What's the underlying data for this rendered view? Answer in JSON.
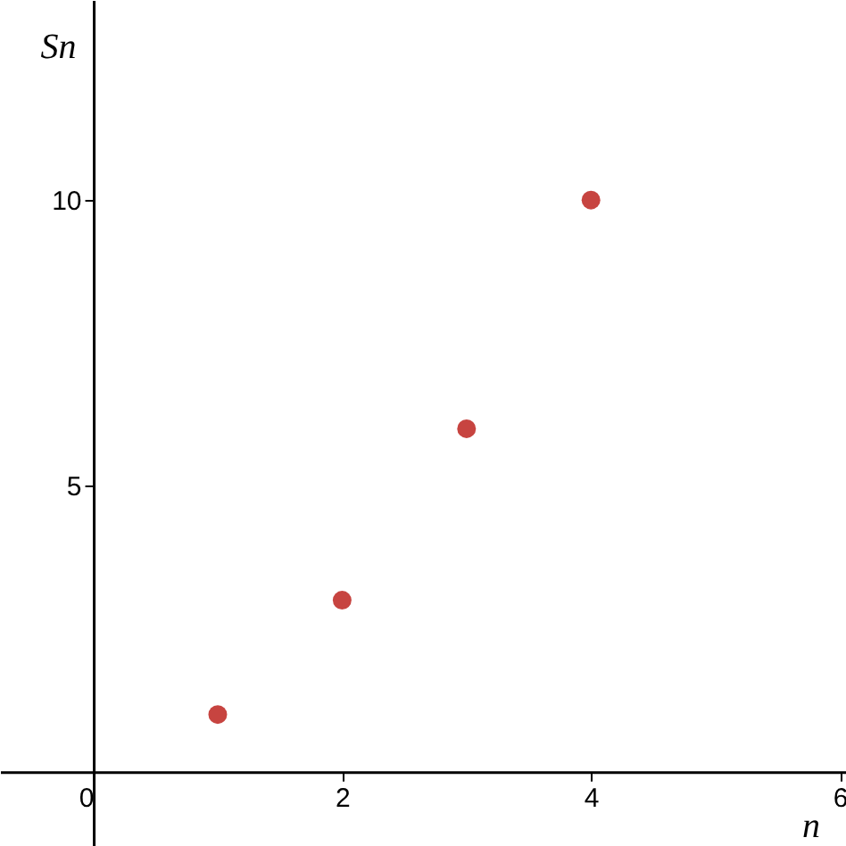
{
  "chart_data": {
    "type": "scatter",
    "xlabel": "n",
    "ylabel": "Sn",
    "x": [
      1,
      2,
      3,
      4
    ],
    "series": [
      {
        "color": "#c74440",
        "values": [
          1,
          3,
          6,
          10
        ]
      }
    ],
    "xlim": [
      -0.75,
      6.05
    ],
    "ylim": [
      -1.3,
      13.5
    ],
    "xticks": [
      0,
      2,
      4,
      6
    ],
    "yticks": [
      5,
      10
    ],
    "grid": false
  }
}
